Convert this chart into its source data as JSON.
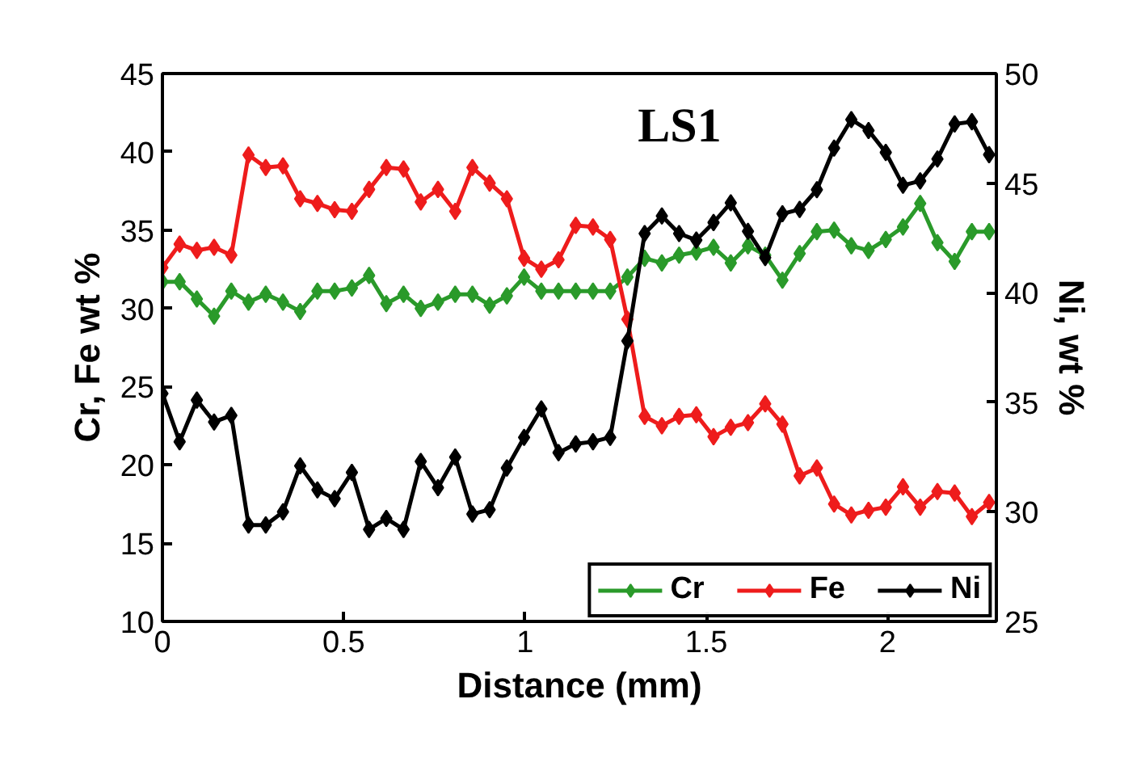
{
  "chart_data": {
    "type": "line",
    "title": "LS1",
    "xlabel": "Distance (mm)",
    "ylabel": "Cr, Fe wt %",
    "y2label": "Ni, wt %",
    "x": [
      0,
      0.0475,
      0.095,
      0.1425,
      0.19,
      0.2375,
      0.285,
      0.3325,
      0.38,
      0.4275,
      0.475,
      0.5225,
      0.57,
      0.6175,
      0.665,
      0.7125,
      0.76,
      0.8075,
      0.855,
      0.9025,
      0.95,
      0.9975,
      1.045,
      1.0925,
      1.14,
      1.1875,
      1.235,
      1.2825,
      1.33,
      1.3775,
      1.425,
      1.4725,
      1.52,
      1.5675,
      1.615,
      1.6625,
      1.71,
      1.7575,
      1.805,
      1.8525,
      1.9,
      1.9475,
      1.995,
      2.0425,
      2.09,
      2.1375,
      2.185,
      2.2325,
      2.28
    ],
    "series": [
      {
        "name": "Cr",
        "color": "#2a9a2a",
        "values": [
          31.7,
          31.7,
          30.6,
          29.5,
          31.1,
          30.4,
          30.9,
          30.4,
          29.8,
          31.1,
          31.1,
          31.3,
          32.1,
          30.3,
          30.9,
          30.0,
          30.4,
          30.9,
          30.9,
          30.2,
          30.8,
          32.0,
          31.1,
          31.1,
          31.1,
          31.1,
          31.1,
          32.0,
          33.2,
          32.9,
          33.4,
          33.6,
          33.9,
          32.9,
          34.0,
          33.4,
          31.8,
          33.5,
          34.9,
          35.0,
          34.0,
          33.7,
          34.4,
          35.2,
          36.7,
          34.2,
          33.0,
          34.9,
          34.9
        ]
      },
      {
        "name": "Fe",
        "color": "#ee1c1c",
        "values": [
          32.6,
          34.1,
          33.7,
          33.9,
          33.4,
          39.8,
          39.0,
          39.1,
          37.0,
          36.7,
          36.3,
          36.2,
          37.6,
          39.0,
          38.9,
          36.8,
          37.6,
          36.2,
          39.0,
          38.0,
          37.0,
          33.2,
          32.5,
          33.1,
          35.3,
          35.2,
          34.4,
          29.3,
          23.1,
          22.5,
          23.1,
          23.2,
          21.8,
          22.4,
          22.7,
          23.9,
          22.6,
          19.3,
          19.8,
          17.5,
          16.8,
          17.1,
          17.3,
          18.6,
          17.3,
          18.3,
          18.2,
          16.7,
          17.6
        ]
      },
      {
        "name": "Ni",
        "color": "#000000",
        "axis": "y2",
        "values": [
          35.4,
          33.2,
          35.1,
          34.1,
          34.4,
          29.4,
          29.4,
          30.0,
          32.1,
          31.0,
          30.6,
          31.8,
          29.2,
          29.7,
          29.2,
          32.3,
          31.1,
          32.5,
          29.9,
          30.1,
          32.0,
          33.4,
          34.7,
          32.7,
          33.1,
          33.2,
          33.4,
          37.8,
          42.7,
          43.5,
          42.7,
          42.4,
          43.2,
          44.1,
          42.8,
          41.6,
          43.6,
          43.8,
          44.7,
          46.6,
          47.9,
          47.4,
          46.4,
          44.9,
          45.1,
          46.1,
          47.7,
          47.8,
          46.3
        ]
      }
    ],
    "xlim": [
      0,
      2.3
    ],
    "xticks": [
      0,
      0.5,
      1,
      1.5,
      2
    ],
    "ylim": [
      10,
      45
    ],
    "yticks": [
      10,
      15,
      20,
      25,
      30,
      35,
      40,
      45
    ],
    "y2lim": [
      25,
      50
    ],
    "y2ticks": [
      25,
      30,
      35,
      40,
      45,
      50
    ],
    "marker": "diamond",
    "line_style": "solid",
    "grid": false,
    "legend": "bottom right"
  }
}
